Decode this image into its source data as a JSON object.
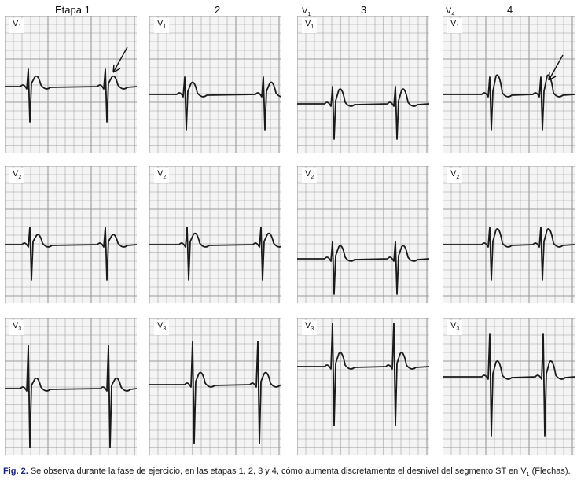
{
  "stages": [
    {
      "label": "Etapa 1"
    },
    {
      "label": "2"
    },
    {
      "label": "3"
    },
    {
      "label": "4"
    }
  ],
  "corner_labels": [
    {
      "lead": "V",
      "sub": "1"
    },
    {
      "lead": "V",
      "sub": "4"
    }
  ],
  "rows": [
    {
      "lead": "V",
      "sub": "1"
    },
    {
      "lead": "V",
      "sub": "2"
    },
    {
      "lead": "V",
      "sub": "3"
    }
  ],
  "caption": {
    "fig": "Fig. 2.",
    "text": " Se observa durante la fase de ejercicio, en las etapas 1, 2, 3 y 4, cómo aumenta discretamente el desnivel del segmento ST en V",
    "sub": "1",
    "tail": " (Flechas)."
  },
  "colors": {
    "grid": "#9a9a9a",
    "trace": "#1a1a1a",
    "caption_fig": "#1a237e"
  }
}
